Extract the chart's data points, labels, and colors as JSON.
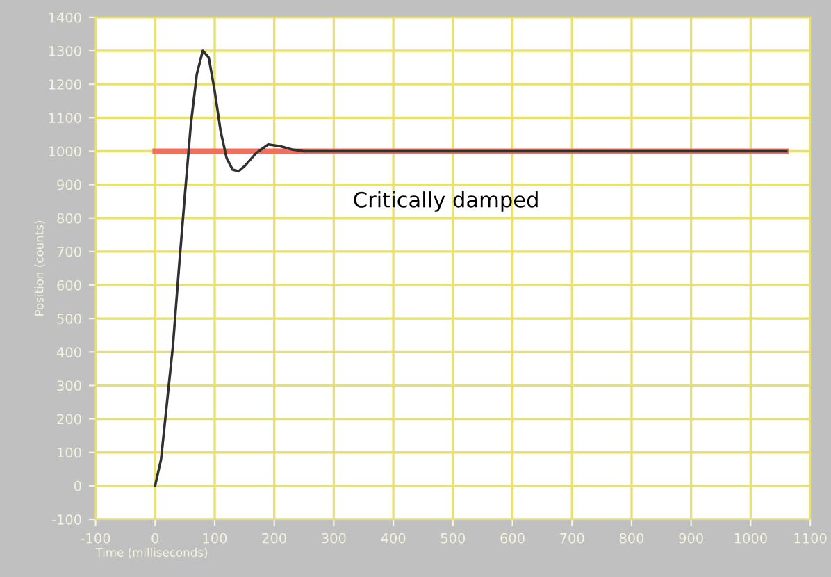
{
  "chart_data": {
    "type": "line",
    "xlabel": "Time (milliseconds)",
    "ylabel": "Position (counts)",
    "annotations": [
      "Critically damped"
    ],
    "series": [
      {
        "color": "#f07060",
        "x": [
          0,
          1060
        ],
        "values": [
          1000,
          1000
        ]
      },
      {
        "color": "#303030",
        "x": [
          0,
          10,
          20,
          30,
          40,
          50,
          60,
          70,
          80,
          90,
          100,
          110,
          120,
          130,
          140,
          150,
          170,
          190,
          210,
          230,
          250,
          1060
        ],
        "values": [
          0,
          80,
          250,
          420,
          650,
          870,
          1080,
          1230,
          1300,
          1280,
          1180,
          1060,
          980,
          945,
          940,
          955,
          995,
          1020,
          1015,
          1005,
          1000,
          1000
        ]
      }
    ],
    "xlim": [
      -100,
      1100
    ],
    "xticks": [
      -100,
      0,
      100,
      200,
      300,
      400,
      500,
      600,
      700,
      800,
      900,
      1000,
      1100
    ],
    "ylim": [
      -100,
      1400
    ],
    "yticks": [
      -100,
      0,
      100,
      200,
      300,
      400,
      500,
      600,
      700,
      800,
      900,
      1000,
      1100,
      1200,
      1300,
      1400
    ],
    "grid": true,
    "marker": "none",
    "line_style": "solid"
  }
}
